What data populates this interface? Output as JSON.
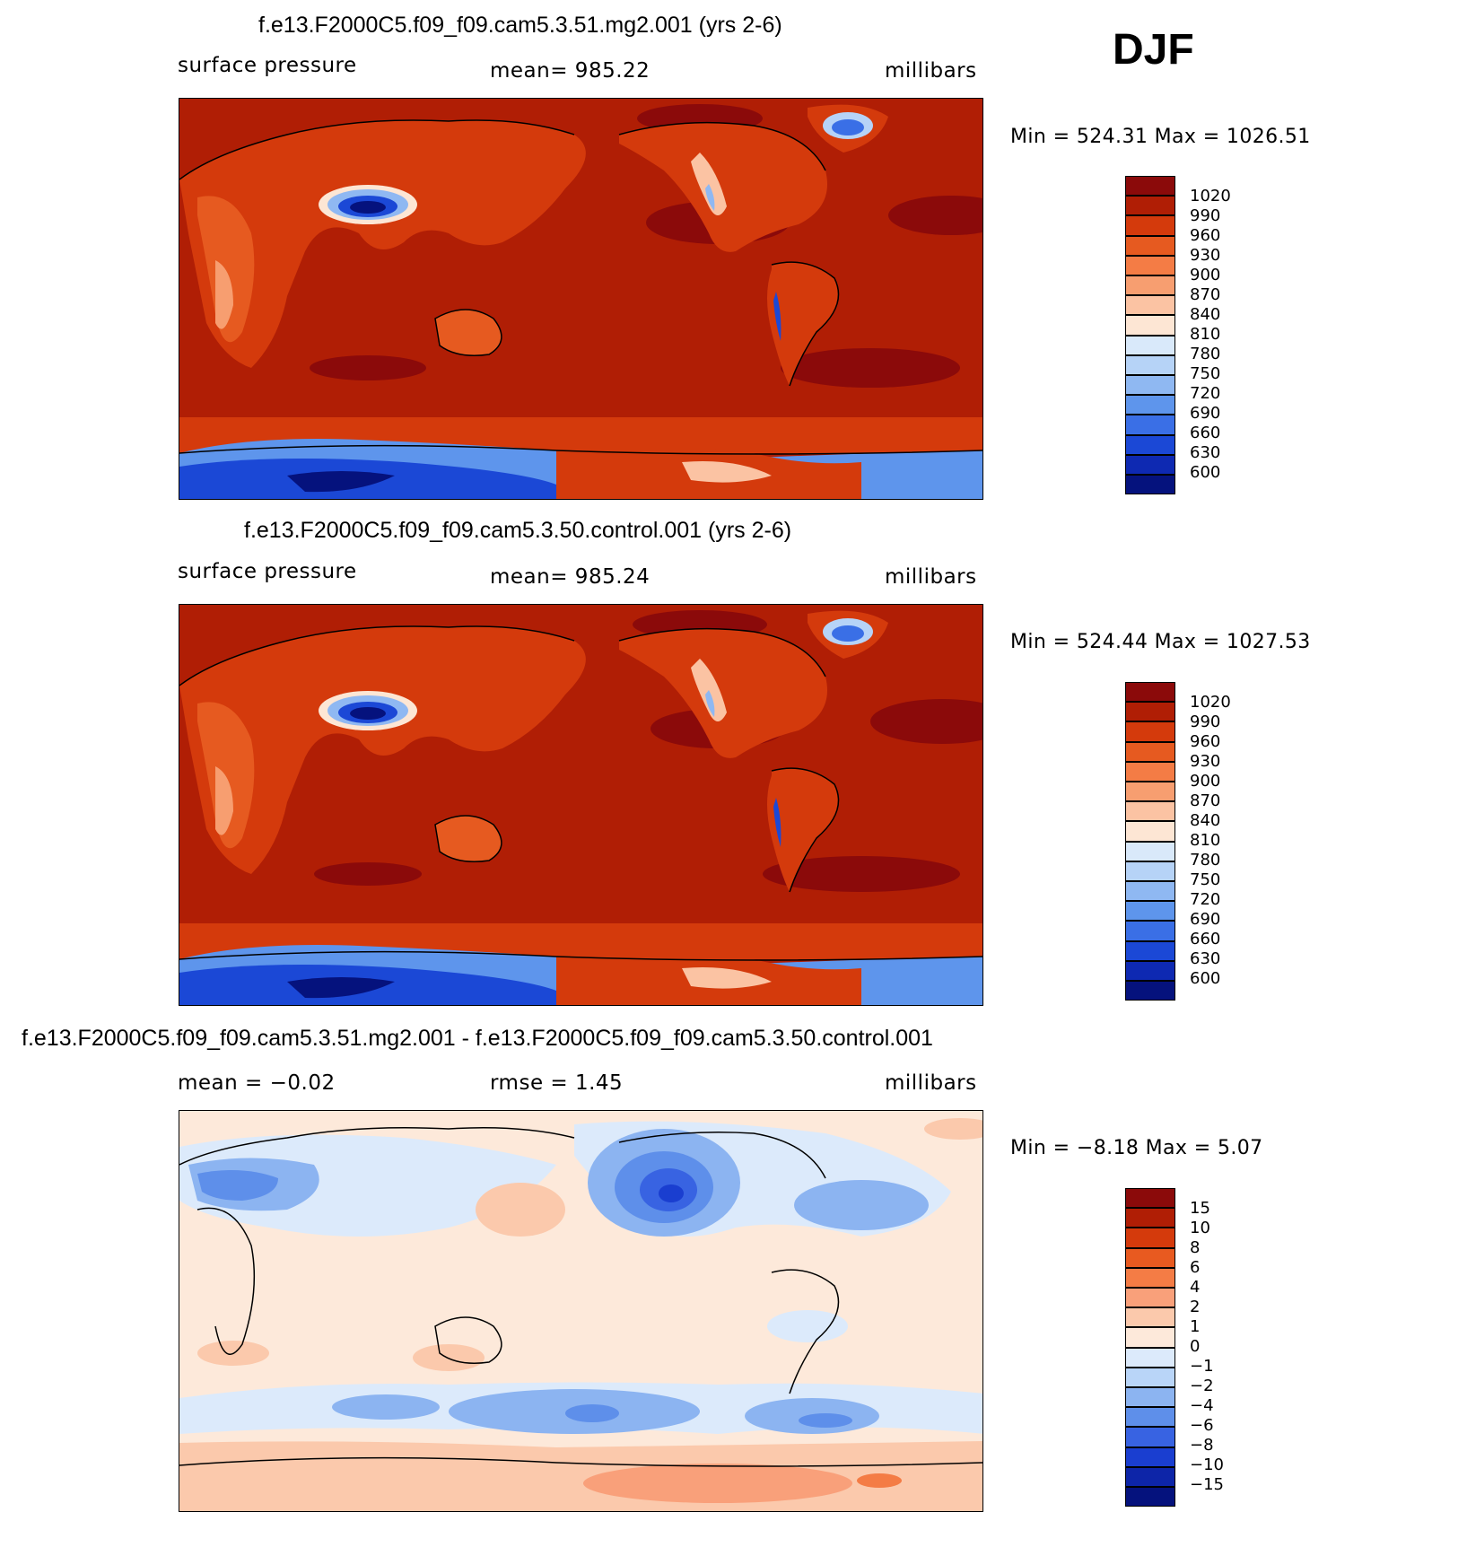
{
  "season": "DJF",
  "panels": [
    {
      "id": "test",
      "title": "f.e13.F2000C5.f09_f09.cam5.3.51.mg2.001 (yrs 2-6)",
      "variable": "surface pressure",
      "stat": "mean=  985.22",
      "units": "millibars",
      "minmax": "Min  =  524.31  Max  =  1026.51",
      "colorbar": {
        "labels": [
          "1020",
          "990",
          "960",
          "930",
          "900",
          "870",
          "840",
          "810",
          "780",
          "750",
          "720",
          "690",
          "660",
          "630",
          "600"
        ],
        "colors": [
          "#8b0a0a",
          "#b01e05",
          "#d43a0c",
          "#e65a20",
          "#f47c45",
          "#f79e70",
          "#fbc3a3",
          "#fde6d4",
          "#d9e9fa",
          "#b6d3f7",
          "#8fb8f2",
          "#5e95ec",
          "#3a6fe6",
          "#1b48d6",
          "#0e29b2",
          "#05127d"
        ]
      }
    },
    {
      "id": "control",
      "title": "f.e13.F2000C5.f09_f09.cam5.3.50.control.001 (yrs 2-6)",
      "variable": "surface pressure",
      "stat": "mean=  985.24",
      "units": "millibars",
      "minmax": "Min  =  524.44  Max  =  1027.53",
      "colorbar": {
        "labels": [
          "1020",
          "990",
          "960",
          "930",
          "900",
          "870",
          "840",
          "810",
          "780",
          "750",
          "720",
          "690",
          "660",
          "630",
          "600"
        ],
        "colors": [
          "#8b0a0a",
          "#b01e05",
          "#d43a0c",
          "#e65a20",
          "#f47c45",
          "#f79e70",
          "#fbc3a3",
          "#fde6d4",
          "#d9e9fa",
          "#b6d3f7",
          "#8fb8f2",
          "#5e95ec",
          "#3a6fe6",
          "#1b48d6",
          "#0e29b2",
          "#05127d"
        ]
      }
    },
    {
      "id": "difference",
      "title": "f.e13.F2000C5.f09_f09.cam5.3.51.mg2.001 - f.e13.F2000C5.f09_f09.cam5.3.50.control.001",
      "stat_mean": "mean  =   −0.02",
      "stat_rmse": "rmse  =      1.45",
      "units": "millibars",
      "minmax": "Min  =    −8.18  Max  =      5.07",
      "colorbar": {
        "labels": [
          "15",
          "10",
          "8",
          "6",
          "4",
          "2",
          "1",
          "0",
          "−1",
          "−2",
          "−4",
          "−6",
          "−8",
          "−10",
          "−15"
        ],
        "colors": [
          "#8b0a0a",
          "#b01e05",
          "#d43a0c",
          "#e85a20",
          "#f47c45",
          "#f9a07a",
          "#fbc9ac",
          "#fde9da",
          "#dceafb",
          "#b9d5f8",
          "#8cb4f1",
          "#5e8fea",
          "#3863e2",
          "#1a3ed0",
          "#0d25a8",
          "#05127d"
        ]
      }
    }
  ]
}
